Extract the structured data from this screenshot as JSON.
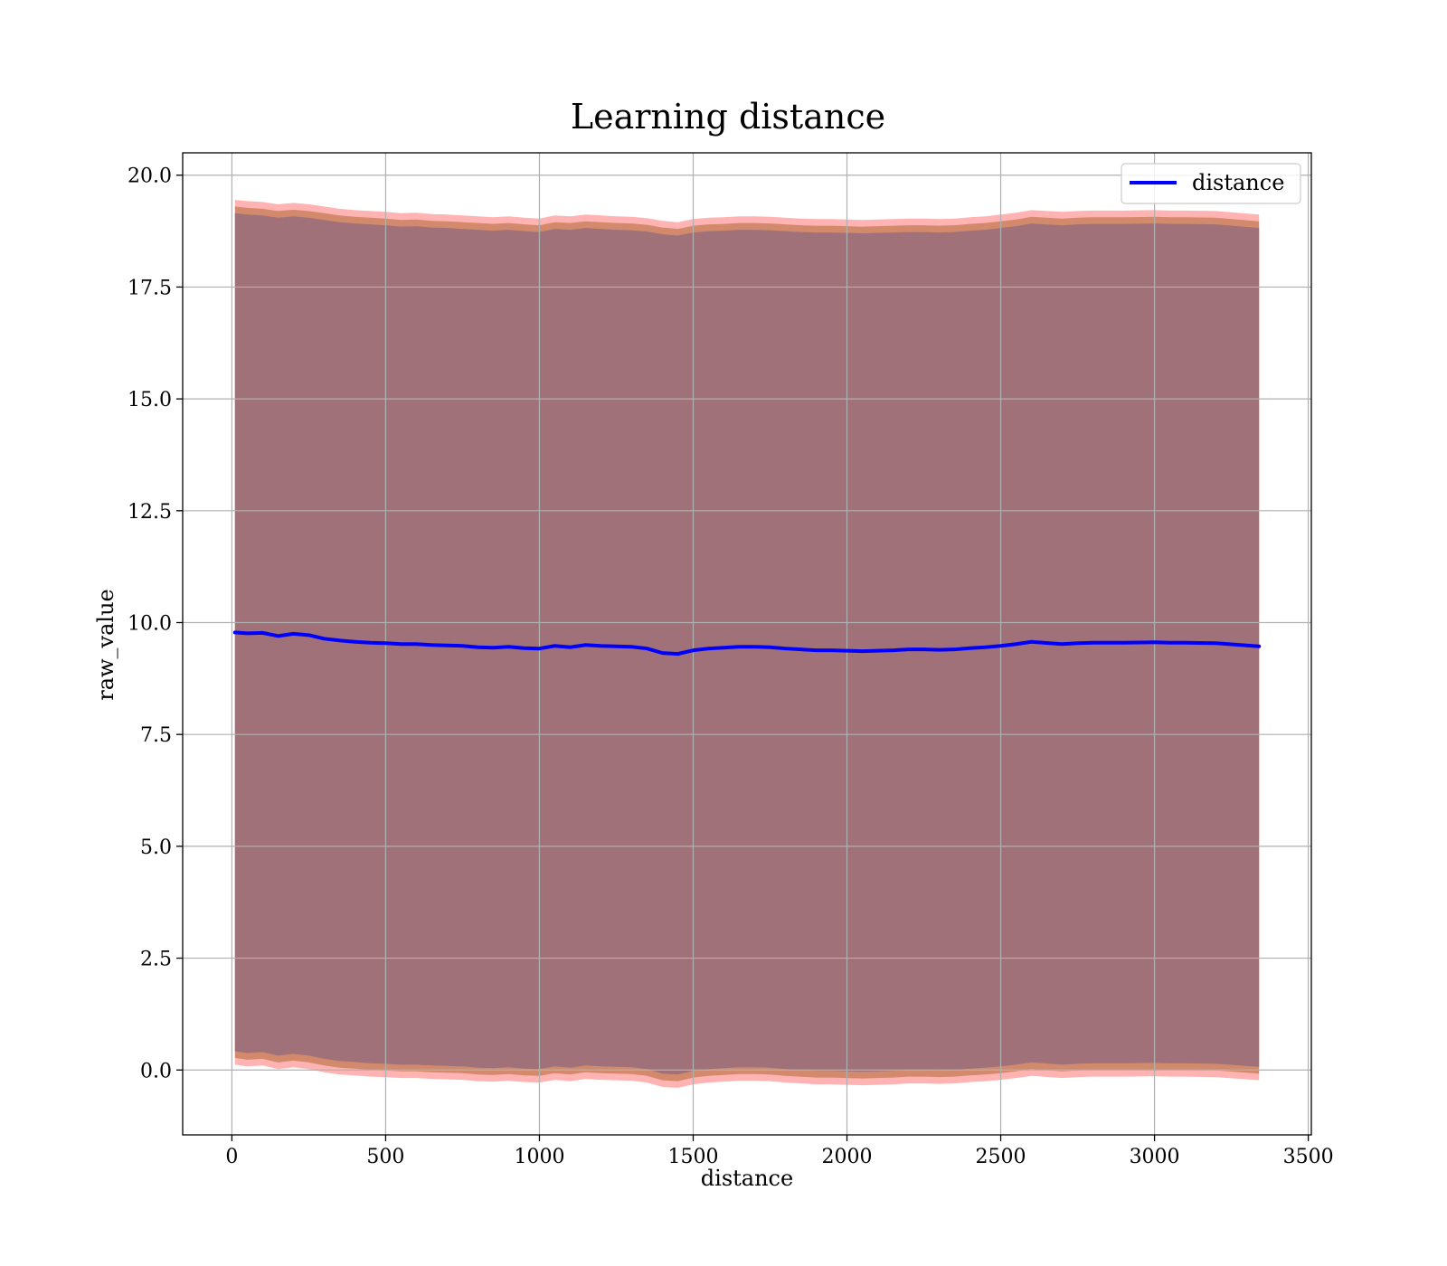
{
  "chart_data": {
    "type": "line",
    "title": "Learning distance",
    "xlabel": "distance",
    "ylabel": "raw_value",
    "xlim": [
      -160,
      3510
    ],
    "ylim": [
      -1.45,
      20.5
    ],
    "xticks": [
      0,
      500,
      1000,
      1500,
      2000,
      2500,
      3000,
      3500
    ],
    "xtick_labels": [
      "0",
      "500",
      "1000",
      "1500",
      "2000",
      "2500",
      "3000",
      "3500"
    ],
    "yticks": [
      0.0,
      2.5,
      5.0,
      7.5,
      10.0,
      12.5,
      15.0,
      17.5,
      20.0
    ],
    "ytick_labels": [
      "0.0",
      "2.5",
      "5.0",
      "7.5",
      "10.0",
      "12.5",
      "15.0",
      "17.5",
      "20.0"
    ],
    "grid": true,
    "legend_position": "upper right",
    "series": [
      {
        "name": "distance",
        "color": "#0000ff",
        "x": [
          10,
          50,
          100,
          150,
          200,
          250,
          300,
          350,
          400,
          450,
          500,
          550,
          600,
          650,
          700,
          750,
          800,
          850,
          900,
          950,
          1000,
          1050,
          1100,
          1150,
          1200,
          1250,
          1300,
          1350,
          1400,
          1450,
          1500,
          1550,
          1600,
          1650,
          1700,
          1750,
          1800,
          1850,
          1900,
          1950,
          2000,
          2050,
          2100,
          2150,
          2200,
          2250,
          2300,
          2350,
          2400,
          2450,
          2500,
          2550,
          2600,
          2700,
          2750,
          2800,
          2900,
          3000,
          3050,
          3100,
          3200,
          3340
        ],
        "y": [
          9.78,
          9.76,
          9.77,
          9.7,
          9.75,
          9.72,
          9.64,
          9.6,
          9.57,
          9.55,
          9.54,
          9.52,
          9.52,
          9.5,
          9.49,
          9.48,
          9.45,
          9.44,
          9.46,
          9.43,
          9.42,
          9.48,
          9.45,
          9.5,
          9.48,
          9.47,
          9.46,
          9.42,
          9.32,
          9.3,
          9.38,
          9.42,
          9.44,
          9.46,
          9.46,
          9.45,
          9.42,
          9.4,
          9.38,
          9.38,
          9.37,
          9.36,
          9.37,
          9.38,
          9.4,
          9.4,
          9.39,
          9.4,
          9.43,
          9.45,
          9.48,
          9.52,
          9.57,
          9.52,
          9.54,
          9.55,
          9.55,
          9.56,
          9.55,
          9.55,
          9.54,
          9.47
        ],
        "band_outer": {
          "color": "#ff9999",
          "upper": [
            19.45,
            19.42,
            19.4,
            19.35,
            19.38,
            19.35,
            19.3,
            19.25,
            19.22,
            19.2,
            19.18,
            19.15,
            19.16,
            19.13,
            19.12,
            19.1,
            19.08,
            19.06,
            19.08,
            19.05,
            19.03,
            19.1,
            19.08,
            19.12,
            19.1,
            19.08,
            19.07,
            19.04,
            18.98,
            18.95,
            19.02,
            19.05,
            19.06,
            19.08,
            19.08,
            19.07,
            19.05,
            19.03,
            19.02,
            19.02,
            19.01,
            19.0,
            19.01,
            19.02,
            19.03,
            19.03,
            19.02,
            19.03,
            19.06,
            19.08,
            19.12,
            19.16,
            19.22,
            19.18,
            19.2,
            19.21,
            19.21,
            19.22,
            19.21,
            19.21,
            19.2,
            19.12
          ],
          "lower": [
            0.12,
            0.08,
            0.1,
            0.02,
            0.06,
            0.02,
            -0.05,
            -0.1,
            -0.12,
            -0.15,
            -0.16,
            -0.18,
            -0.18,
            -0.2,
            -0.21,
            -0.22,
            -0.25,
            -0.26,
            -0.24,
            -0.27,
            -0.28,
            -0.22,
            -0.25,
            -0.2,
            -0.22,
            -0.23,
            -0.24,
            -0.28,
            -0.38,
            -0.4,
            -0.32,
            -0.28,
            -0.26,
            -0.24,
            -0.24,
            -0.25,
            -0.28,
            -0.3,
            -0.32,
            -0.32,
            -0.33,
            -0.34,
            -0.33,
            -0.32,
            -0.3,
            -0.3,
            -0.31,
            -0.3,
            -0.27,
            -0.25,
            -0.22,
            -0.18,
            -0.13,
            -0.18,
            -0.16,
            -0.15,
            -0.15,
            -0.14,
            -0.15,
            -0.15,
            -0.16,
            -0.23
          ]
        },
        "band_mid": {
          "color": "#c8805a",
          "upper": [
            19.3,
            19.27,
            19.25,
            19.2,
            19.23,
            19.2,
            19.15,
            19.1,
            19.07,
            19.05,
            19.03,
            19.0,
            19.01,
            18.98,
            18.97,
            18.95,
            18.93,
            18.91,
            18.93,
            18.9,
            18.88,
            18.95,
            18.93,
            18.97,
            18.95,
            18.93,
            18.92,
            18.89,
            18.83,
            18.8,
            18.87,
            18.9,
            18.91,
            18.93,
            18.93,
            18.92,
            18.9,
            18.88,
            18.87,
            18.87,
            18.86,
            18.85,
            18.86,
            18.87,
            18.88,
            18.88,
            18.87,
            18.88,
            18.91,
            18.93,
            18.97,
            19.01,
            19.07,
            19.03,
            19.05,
            19.06,
            19.06,
            19.07,
            19.06,
            19.06,
            19.05,
            18.97
          ],
          "lower": [
            0.27,
            0.23,
            0.25,
            0.17,
            0.21,
            0.17,
            0.1,
            0.05,
            0.03,
            0.0,
            -0.01,
            -0.03,
            -0.03,
            -0.05,
            -0.06,
            -0.07,
            -0.1,
            -0.11,
            -0.09,
            -0.12,
            -0.13,
            -0.07,
            -0.1,
            -0.05,
            -0.07,
            -0.08,
            -0.09,
            -0.13,
            -0.23,
            -0.25,
            -0.17,
            -0.13,
            -0.11,
            -0.09,
            -0.09,
            -0.1,
            -0.13,
            -0.15,
            -0.17,
            -0.17,
            -0.18,
            -0.19,
            -0.18,
            -0.17,
            -0.15,
            -0.15,
            -0.16,
            -0.15,
            -0.12,
            -0.1,
            -0.07,
            -0.03,
            0.02,
            -0.03,
            -0.01,
            0.0,
            0.0,
            0.01,
            0.0,
            0.0,
            -0.01,
            -0.08
          ]
        },
        "band_inner": {
          "color": "#a1717a",
          "upper": [
            19.15,
            19.12,
            19.1,
            19.05,
            19.08,
            19.05,
            19.0,
            18.95,
            18.92,
            18.9,
            18.88,
            18.85,
            18.86,
            18.83,
            18.82,
            18.8,
            18.78,
            18.76,
            18.78,
            18.75,
            18.73,
            18.8,
            18.78,
            18.82,
            18.8,
            18.78,
            18.77,
            18.74,
            18.68,
            18.65,
            18.72,
            18.75,
            18.76,
            18.78,
            18.78,
            18.77,
            18.75,
            18.73,
            18.72,
            18.72,
            18.71,
            18.7,
            18.71,
            18.72,
            18.73,
            18.73,
            18.72,
            18.73,
            18.76,
            18.78,
            18.82,
            18.86,
            18.92,
            18.88,
            18.9,
            18.91,
            18.91,
            18.92,
            18.91,
            18.91,
            18.9,
            18.82
          ],
          "lower": [
            0.42,
            0.38,
            0.4,
            0.32,
            0.36,
            0.32,
            0.25,
            0.2,
            0.18,
            0.15,
            0.14,
            0.12,
            0.12,
            0.1,
            0.09,
            0.08,
            0.05,
            0.04,
            0.06,
            0.03,
            0.02,
            0.08,
            0.05,
            0.1,
            0.08,
            0.07,
            0.06,
            0.02,
            -0.08,
            -0.1,
            -0.02,
            0.02,
            0.04,
            0.06,
            0.06,
            0.05,
            0.02,
            0.0,
            -0.02,
            -0.02,
            -0.03,
            -0.04,
            -0.03,
            -0.02,
            0.0,
            0.0,
            -0.01,
            0.0,
            0.03,
            0.05,
            0.08,
            0.12,
            0.17,
            0.12,
            0.14,
            0.15,
            0.15,
            0.16,
            0.15,
            0.15,
            0.14,
            0.07
          ]
        }
      }
    ]
  }
}
